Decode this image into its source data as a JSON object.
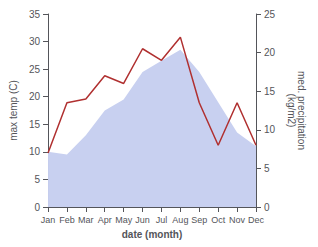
{
  "chart_data": {
    "type": "line",
    "categories": [
      "Jan",
      "Feb",
      "Mar",
      "Apr",
      "May",
      "Jun",
      "Jul",
      "Aug",
      "Sep",
      "Oct",
      "Nov",
      "Dec"
    ],
    "xlabel": "date (month)",
    "ylabel": "max temp (C)",
    "y2label": "med. precipitation\n(kg/m2)",
    "ylim": [
      0,
      35
    ],
    "yticks": [
      0,
      5,
      10,
      15,
      20,
      25,
      30,
      35
    ],
    "y2lim": [
      0,
      25
    ],
    "y2ticks": [
      0,
      5,
      10,
      15,
      20,
      25
    ],
    "grid": false,
    "series": [
      {
        "type": "area",
        "color": "#c8d0f0",
        "values": [
          10.0,
          9.5,
          13.0,
          17.5,
          19.5,
          24.5,
          26.5,
          28.5,
          24.5,
          19.0,
          13.5,
          11.0
        ]
      },
      {
        "type": "line",
        "color": "#b03030",
        "axis": "y2",
        "values": [
          7.0,
          13.5,
          14.0,
          17.0,
          16.0,
          20.5,
          19.0,
          22.0,
          13.5,
          8.0,
          13.5,
          8.0
        ]
      }
    ]
  }
}
